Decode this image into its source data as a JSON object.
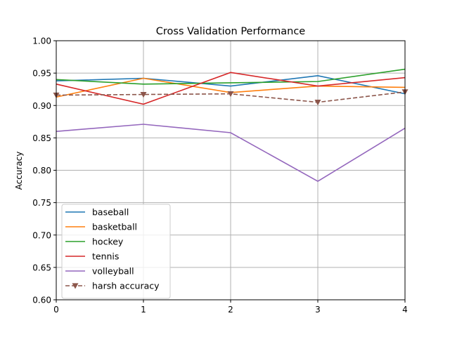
{
  "chart_data": {
    "type": "line",
    "title": "Cross Validation Performance",
    "xlabel": "",
    "ylabel": "Accuracy",
    "x": [
      0,
      1,
      2,
      3,
      4
    ],
    "xticks": [
      "0",
      "1",
      "2",
      "3",
      "4"
    ],
    "yticks": [
      "0.60",
      "0.65",
      "0.70",
      "0.75",
      "0.80",
      "0.85",
      "0.90",
      "0.95",
      "1.00"
    ],
    "xlim": [
      0,
      4
    ],
    "ylim": [
      0.6,
      1.0
    ],
    "grid": true,
    "legend_position": "lower-left",
    "series": [
      {
        "name": "baseball",
        "values": [
          0.938,
          0.942,
          0.93,
          0.946,
          0.918
        ],
        "color": "#1f77b4",
        "style": "solid",
        "marker": "none"
      },
      {
        "name": "basketball",
        "values": [
          0.913,
          0.942,
          0.92,
          0.93,
          0.928
        ],
        "color": "#ff7f0e",
        "style": "solid",
        "marker": "none"
      },
      {
        "name": "hockey",
        "values": [
          0.94,
          0.933,
          0.935,
          0.937,
          0.956
        ],
        "color": "#2ca02c",
        "style": "solid",
        "marker": "none"
      },
      {
        "name": "tennis",
        "values": [
          0.933,
          0.902,
          0.951,
          0.93,
          0.943
        ],
        "color": "#d62728",
        "style": "solid",
        "marker": "none"
      },
      {
        "name": "volleyball",
        "values": [
          0.86,
          0.871,
          0.858,
          0.783,
          0.865
        ],
        "color": "#9467bd",
        "style": "solid",
        "marker": "none"
      },
      {
        "name": "harsh accuracy",
        "values": [
          0.916,
          0.917,
          0.918,
          0.905,
          0.921
        ],
        "color": "#8c564b",
        "style": "dashed",
        "marker": "triangle-down"
      }
    ]
  }
}
